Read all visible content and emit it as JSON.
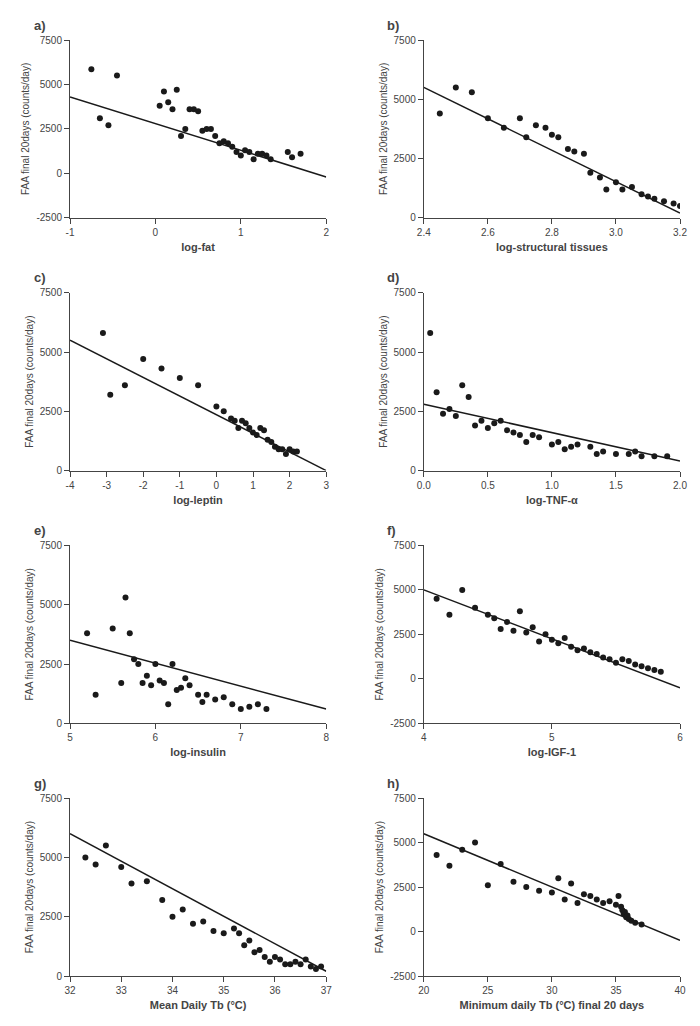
{
  "chart_data": [
    {
      "type": "scatter",
      "title": "a)",
      "xlabel": "log-fat",
      "ylabel": "FAA final 20days (counts/day)",
      "xlim": [
        -1,
        2
      ],
      "xticks": [
        -1,
        0,
        1,
        2
      ],
      "ylim": [
        -2500,
        7500
      ],
      "yticks": [
        -2500,
        0,
        2500,
        5000,
        7500
      ],
      "grid": false,
      "series": [
        {
          "type": "scatter",
          "marker": "circle",
          "color": "#1a1a1a",
          "x": [
            -0.75,
            -0.65,
            -0.55,
            -0.45,
            0.05,
            0.1,
            0.15,
            0.2,
            0.25,
            0.3,
            0.35,
            0.4,
            0.45,
            0.5,
            0.55,
            0.6,
            0.65,
            0.7,
            0.75,
            0.8,
            0.85,
            0.9,
            0.95,
            1.0,
            1.05,
            1.1,
            1.15,
            1.2,
            1.25,
            1.3,
            1.35,
            1.55,
            1.6,
            1.7
          ],
          "values": [
            5850,
            3100,
            2700,
            5500,
            3800,
            4600,
            4000,
            3600,
            4700,
            2100,
            2500,
            3600,
            3600,
            3500,
            2400,
            2500,
            2500,
            2100,
            1700,
            1800,
            1700,
            1500,
            1200,
            1000,
            1300,
            1200,
            800,
            1100,
            1100,
            1000,
            800,
            1200,
            900,
            1100
          ]
        },
        {
          "type": "line",
          "line_style": "solid",
          "color": "#1a1a1a",
          "x": [
            -1,
            2
          ],
          "values": [
            4300,
            -200
          ]
        }
      ]
    },
    {
      "type": "scatter",
      "title": "b)",
      "xlabel": "log-structural tissues",
      "ylabel": "FAA final 20days (counts/day)",
      "xlim": [
        2.4,
        3.2
      ],
      "xticks": [
        2.4,
        2.6,
        2.8,
        {
          "value": 3.0,
          "label": "3.0"
        },
        3.2
      ],
      "ylim": [
        0,
        7500
      ],
      "yticks": [
        0,
        2500,
        5000,
        7500
      ],
      "grid": false,
      "series": [
        {
          "type": "scatter",
          "marker": "circle",
          "color": "#1a1a1a",
          "x": [
            2.45,
            2.5,
            2.55,
            2.6,
            2.65,
            2.7,
            2.72,
            2.75,
            2.78,
            2.8,
            2.82,
            2.85,
            2.87,
            2.9,
            2.92,
            2.95,
            2.97,
            3.0,
            3.02,
            3.05,
            3.08,
            3.1,
            3.12,
            3.15,
            3.18,
            3.2
          ],
          "values": [
            4400,
            5500,
            5300,
            4200,
            3800,
            4200,
            3400,
            3900,
            3800,
            3500,
            3400,
            2900,
            2800,
            2700,
            1900,
            1700,
            1200,
            1500,
            1200,
            1300,
            1000,
            900,
            800,
            700,
            600,
            500
          ]
        },
        {
          "type": "line",
          "line_style": "solid",
          "color": "#1a1a1a",
          "x": [
            2.4,
            3.2
          ],
          "values": [
            5500,
            200
          ]
        }
      ]
    },
    {
      "type": "scatter",
      "title": "c)",
      "xlabel": "log-leptin",
      "ylabel": "FAA final 20days (counts/day)",
      "xlim": [
        -4,
        3
      ],
      "xticks": [
        -4,
        -3,
        -2,
        -1,
        0,
        1,
        2,
        3
      ],
      "ylim": [
        0,
        7500
      ],
      "yticks": [
        0,
        2500,
        5000,
        7500
      ],
      "grid": false,
      "series": [
        {
          "type": "scatter",
          "marker": "circle",
          "color": "#1a1a1a",
          "x": [
            -3.1,
            -2.9,
            -2.5,
            -2.0,
            -1.5,
            -1.0,
            -0.5,
            0.0,
            0.2,
            0.4,
            0.5,
            0.6,
            0.7,
            0.8,
            0.9,
            1.0,
            1.1,
            1.2,
            1.3,
            1.4,
            1.5,
            1.6,
            1.7,
            1.8,
            1.9,
            2.0,
            2.1,
            2.2
          ],
          "values": [
            5800,
            3200,
            3600,
            4700,
            4300,
            3900,
            3600,
            2700,
            2500,
            2200,
            2100,
            1800,
            2100,
            2000,
            1800,
            1600,
            1500,
            1800,
            1700,
            1300,
            1200,
            1000,
            900,
            900,
            700,
            900,
            800,
            800
          ]
        },
        {
          "type": "line",
          "line_style": "solid",
          "color": "#1a1a1a",
          "x": [
            -4,
            3
          ],
          "values": [
            5500,
            0
          ]
        }
      ]
    },
    {
      "type": "scatter",
      "title": "d)",
      "xlabel": "log-TNF-α",
      "ylabel": "FAA final 20days (counts/day)",
      "xlim": [
        0,
        2
      ],
      "xticks": [
        {
          "value": 0,
          "label": "0.0"
        },
        0.5,
        {
          "value": 1.0,
          "label": "1.0"
        },
        1.5,
        {
          "value": 2.0,
          "label": "2.0"
        }
      ],
      "ylim": [
        0,
        7500
      ],
      "yticks": [
        0,
        2500,
        5000,
        7500
      ],
      "grid": false,
      "series": [
        {
          "type": "scatter",
          "marker": "circle",
          "color": "#1a1a1a",
          "x": [
            0.05,
            0.1,
            0.15,
            0.2,
            0.25,
            0.3,
            0.35,
            0.4,
            0.45,
            0.5,
            0.55,
            0.6,
            0.65,
            0.7,
            0.75,
            0.8,
            0.85,
            0.9,
            1.0,
            1.05,
            1.1,
            1.15,
            1.2,
            1.3,
            1.35,
            1.4,
            1.5,
            1.6,
            1.65,
            1.7,
            1.8,
            1.9
          ],
          "values": [
            5800,
            3300,
            2400,
            2600,
            2300,
            3600,
            3100,
            1900,
            2100,
            1800,
            2000,
            2100,
            1700,
            1600,
            1500,
            1200,
            1500,
            1400,
            1100,
            1200,
            900,
            1000,
            1100,
            1000,
            700,
            800,
            700,
            700,
            800,
            600,
            600,
            600
          ]
        },
        {
          "type": "line",
          "line_style": "solid",
          "color": "#1a1a1a",
          "x": [
            0,
            2
          ],
          "values": [
            2800,
            400
          ]
        }
      ]
    },
    {
      "type": "scatter",
      "title": "e)",
      "xlabel": "log-insulin",
      "ylabel": "FAA final 20days (counts/day)",
      "xlim": [
        5,
        8
      ],
      "xticks": [
        5,
        6,
        7,
        8
      ],
      "ylim": [
        0,
        7500
      ],
      "yticks": [
        0,
        2500,
        5000,
        7500
      ],
      "grid": false,
      "series": [
        {
          "type": "scatter",
          "marker": "circle",
          "color": "#1a1a1a",
          "x": [
            5.2,
            5.3,
            5.5,
            5.6,
            5.65,
            5.7,
            5.75,
            5.8,
            5.85,
            5.9,
            5.95,
            6.0,
            6.05,
            6.1,
            6.15,
            6.2,
            6.25,
            6.3,
            6.35,
            6.4,
            6.5,
            6.55,
            6.6,
            6.7,
            6.8,
            6.9,
            7.0,
            7.1,
            7.2,
            7.3
          ],
          "values": [
            3800,
            1200,
            4000,
            1700,
            5300,
            3800,
            2700,
            2500,
            1700,
            2000,
            1600,
            2500,
            1800,
            1700,
            800,
            2500,
            1400,
            1500,
            1900,
            1600,
            1200,
            900,
            1200,
            1000,
            1100,
            800,
            600,
            700,
            800,
            600
          ]
        },
        {
          "type": "line",
          "line_style": "solid",
          "color": "#1a1a1a",
          "x": [
            5,
            8
          ],
          "values": [
            3500,
            600
          ]
        }
      ]
    },
    {
      "type": "scatter",
      "title": "f)",
      "xlabel": "log-IGF-1",
      "ylabel": "FAA final 20days (counts/day)",
      "xlim": [
        4,
        6
      ],
      "xticks": [
        4,
        5,
        6
      ],
      "ylim": [
        -2500,
        7500
      ],
      "yticks": [
        -2500,
        0,
        2500,
        5000,
        7500
      ],
      "grid": false,
      "series": [
        {
          "type": "scatter",
          "marker": "circle",
          "color": "#1a1a1a",
          "x": [
            4.1,
            4.2,
            4.3,
            4.4,
            4.5,
            4.55,
            4.6,
            4.65,
            4.7,
            4.75,
            4.8,
            4.85,
            4.9,
            4.95,
            5.0,
            5.05,
            5.1,
            5.15,
            5.2,
            5.25,
            5.3,
            5.35,
            5.4,
            5.45,
            5.5,
            5.55,
            5.6,
            5.65,
            5.7,
            5.75,
            5.8,
            5.85
          ],
          "values": [
            4500,
            3600,
            5000,
            4000,
            3600,
            3400,
            2800,
            3200,
            2700,
            3800,
            2600,
            2900,
            2100,
            2500,
            2200,
            2000,
            2300,
            1800,
            1600,
            1700,
            1500,
            1400,
            1200,
            1100,
            900,
            1100,
            1000,
            800,
            700,
            600,
            500,
            400
          ]
        },
        {
          "type": "line",
          "line_style": "solid",
          "color": "#1a1a1a",
          "x": [
            4,
            6
          ],
          "values": [
            5000,
            -500
          ]
        }
      ]
    },
    {
      "type": "scatter",
      "title": "g)",
      "xlabel": "Mean Daily Tb (°C)",
      "ylabel": "FAA final 20days (counts/day)",
      "xlim": [
        32,
        37
      ],
      "xticks": [
        32,
        33,
        34,
        35,
        36,
        37
      ],
      "ylim": [
        0,
        7500
      ],
      "yticks": [
        0,
        2500,
        5000,
        7500
      ],
      "grid": false,
      "series": [
        {
          "type": "scatter",
          "marker": "circle",
          "color": "#1a1a1a",
          "x": [
            32.3,
            32.5,
            32.7,
            33.0,
            33.2,
            33.5,
            33.8,
            34.0,
            34.2,
            34.4,
            34.6,
            34.8,
            35.0,
            35.2,
            35.3,
            35.4,
            35.5,
            35.6,
            35.7,
            35.8,
            35.9,
            36.0,
            36.1,
            36.2,
            36.3,
            36.4,
            36.5,
            36.6,
            36.7,
            36.8,
            36.9
          ],
          "values": [
            5000,
            4700,
            5500,
            4600,
            3900,
            4000,
            3200,
            2500,
            2800,
            2200,
            2300,
            1900,
            1800,
            2000,
            1800,
            1300,
            1500,
            1000,
            1100,
            800,
            600,
            800,
            700,
            500,
            500,
            600,
            500,
            700,
            400,
            300,
            400
          ]
        },
        {
          "type": "line",
          "line_style": "solid",
          "color": "#1a1a1a",
          "x": [
            32,
            37
          ],
          "values": [
            6000,
            200
          ]
        }
      ]
    },
    {
      "type": "scatter",
      "title": "h)",
      "xlabel": "Minimum daily Tb (°C) final 20 days",
      "ylabel": "FAA final 20days (counts/day)",
      "xlim": [
        20,
        40
      ],
      "xticks": [
        20,
        25,
        30,
        35,
        40
      ],
      "ylim": [
        -2500,
        7500
      ],
      "yticks": [
        -2500,
        0,
        2500,
        5000,
        7500
      ],
      "grid": false,
      "series": [
        {
          "type": "scatter",
          "marker": "circle",
          "color": "#1a1a1a",
          "x": [
            21.0,
            22.0,
            23.0,
            24.0,
            25.0,
            26.0,
            27.0,
            28.0,
            29.0,
            30.0,
            30.5,
            31.0,
            31.5,
            32.0,
            32.5,
            33.0,
            33.5,
            34.0,
            34.5,
            35.0,
            35.2,
            35.4,
            35.5,
            35.6,
            35.7,
            35.8,
            35.9,
            36.0,
            36.2,
            36.5,
            37.0
          ],
          "values": [
            4300,
            3700,
            4600,
            5000,
            2600,
            3800,
            2800,
            2500,
            2300,
            2200,
            3000,
            1800,
            2700,
            1600,
            2100,
            2000,
            1800,
            1600,
            1700,
            1500,
            2000,
            1400,
            1200,
            1000,
            1100,
            800,
            900,
            700,
            600,
            500,
            400
          ]
        },
        {
          "type": "line",
          "line_style": "solid",
          "color": "#1a1a1a",
          "x": [
            20,
            40
          ],
          "values": [
            5500,
            -500
          ]
        }
      ]
    }
  ]
}
